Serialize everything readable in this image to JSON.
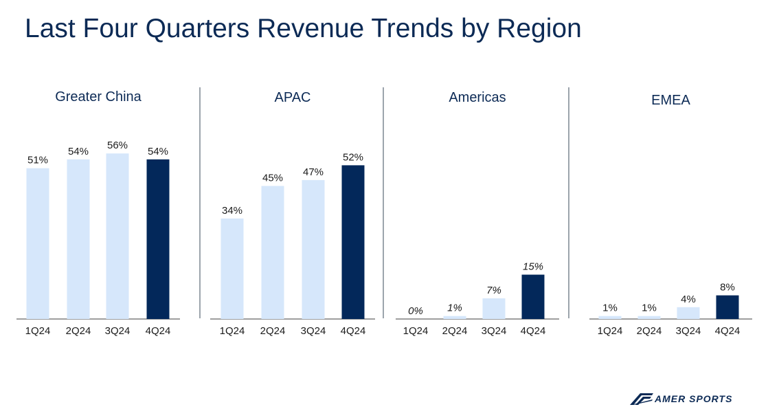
{
  "title": "Last Four Quarters Revenue Trends by Region",
  "logo": {
    "brand": "AMER SPORTS",
    "icon": "amer-sports-logo-icon"
  },
  "colors": {
    "light_bar": "#d6e7fb",
    "dark_bar": "#03285a",
    "text": "#1a1a1a",
    "title": "#0c2a55"
  },
  "chart_data": [
    {
      "type": "bar",
      "title": "Greater China",
      "categories": [
        "1Q24",
        "2Q24",
        "3Q24",
        "4Q24"
      ],
      "values": [
        51,
        54,
        56,
        54
      ],
      "labels": [
        "51%",
        "54%",
        "56%",
        "54%"
      ],
      "label_italic": false,
      "highlight_index": 3
    },
    {
      "type": "bar",
      "title": "APAC",
      "categories": [
        "1Q24",
        "2Q24",
        "3Q24",
        "4Q24"
      ],
      "values": [
        34,
        45,
        47,
        52
      ],
      "labels": [
        "34%",
        "45%",
        "47%",
        "52%"
      ],
      "label_italic": false,
      "highlight_index": 3
    },
    {
      "type": "bar",
      "title": "Americas",
      "categories": [
        "1Q24",
        "2Q24",
        "3Q24",
        "4Q24"
      ],
      "values": [
        0,
        1,
        7,
        15
      ],
      "labels": [
        "0%",
        "1%",
        "7%",
        "15%"
      ],
      "label_italic": true,
      "highlight_index": 3
    },
    {
      "type": "bar",
      "title": "EMEA",
      "categories": [
        "1Q24",
        "2Q24",
        "3Q24",
        "4Q24"
      ],
      "values": [
        1,
        1,
        4,
        8
      ],
      "labels": [
        "1%",
        "1%",
        "4%",
        "8%"
      ],
      "label_italic": false,
      "highlight_index": 3
    }
  ]
}
